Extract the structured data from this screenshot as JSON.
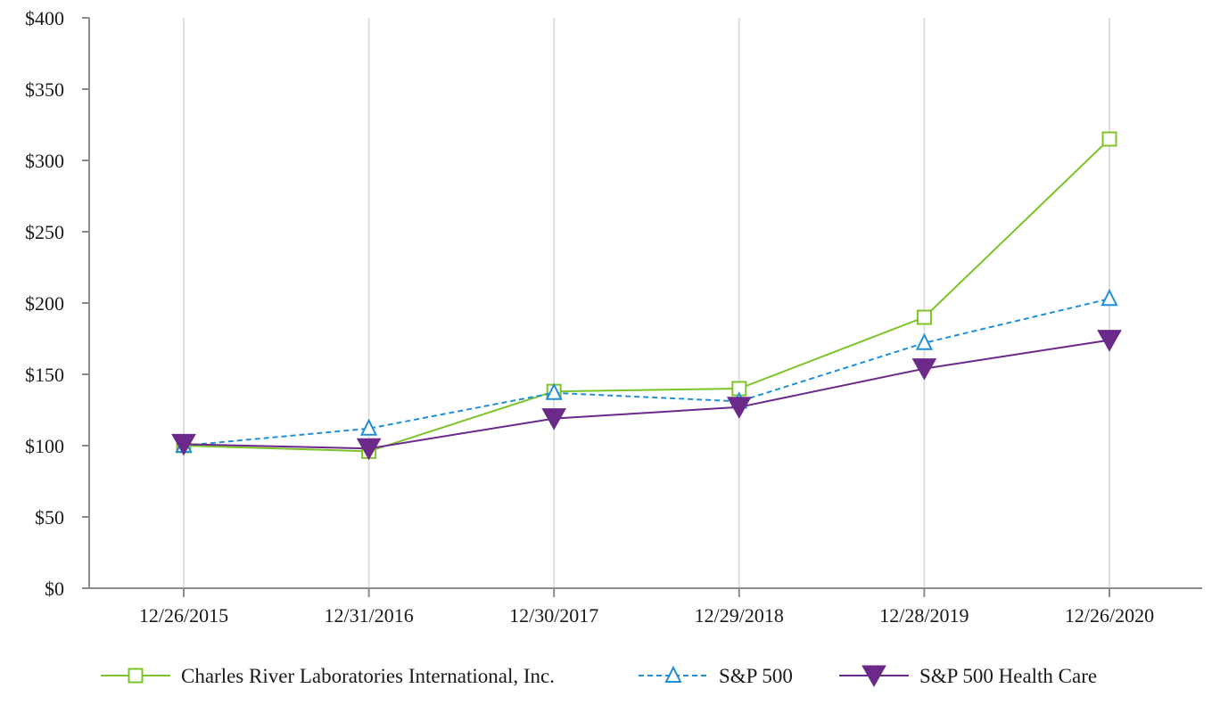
{
  "chart_data": {
    "type": "line",
    "title": "",
    "xlabel": "",
    "ylabel": "",
    "categories": [
      "12/26/2015",
      "12/31/2016",
      "12/30/2017",
      "12/29/2018",
      "12/28/2019",
      "12/26/2020"
    ],
    "ylim": [
      0,
      400
    ],
    "yticks": [
      0,
      50,
      100,
      150,
      200,
      250,
      300,
      350,
      400
    ],
    "ytick_labels": [
      "$0",
      "$50",
      "$100",
      "$150",
      "$200",
      "$250",
      "$300",
      "$350",
      "$400"
    ],
    "grid": "vertical",
    "legend_position": "bottom",
    "series": [
      {
        "name": "Charles River Laboratories International, Inc.",
        "values": [
          100,
          96,
          138,
          140,
          190,
          315
        ],
        "color": "#7dc42a",
        "marker": "square-open",
        "line_style": "solid"
      },
      {
        "name": "S&P 500",
        "values": [
          100,
          112,
          137,
          131,
          172,
          203
        ],
        "color": "#1f8fd8",
        "marker": "triangle-up-open",
        "line_style": "dashed"
      },
      {
        "name": "S&P 500 Health Care",
        "values": [
          101,
          98,
          119,
          127,
          154,
          174
        ],
        "color": "#6b2a8a",
        "marker": "triangle-down-filled",
        "line_style": "solid"
      }
    ]
  }
}
